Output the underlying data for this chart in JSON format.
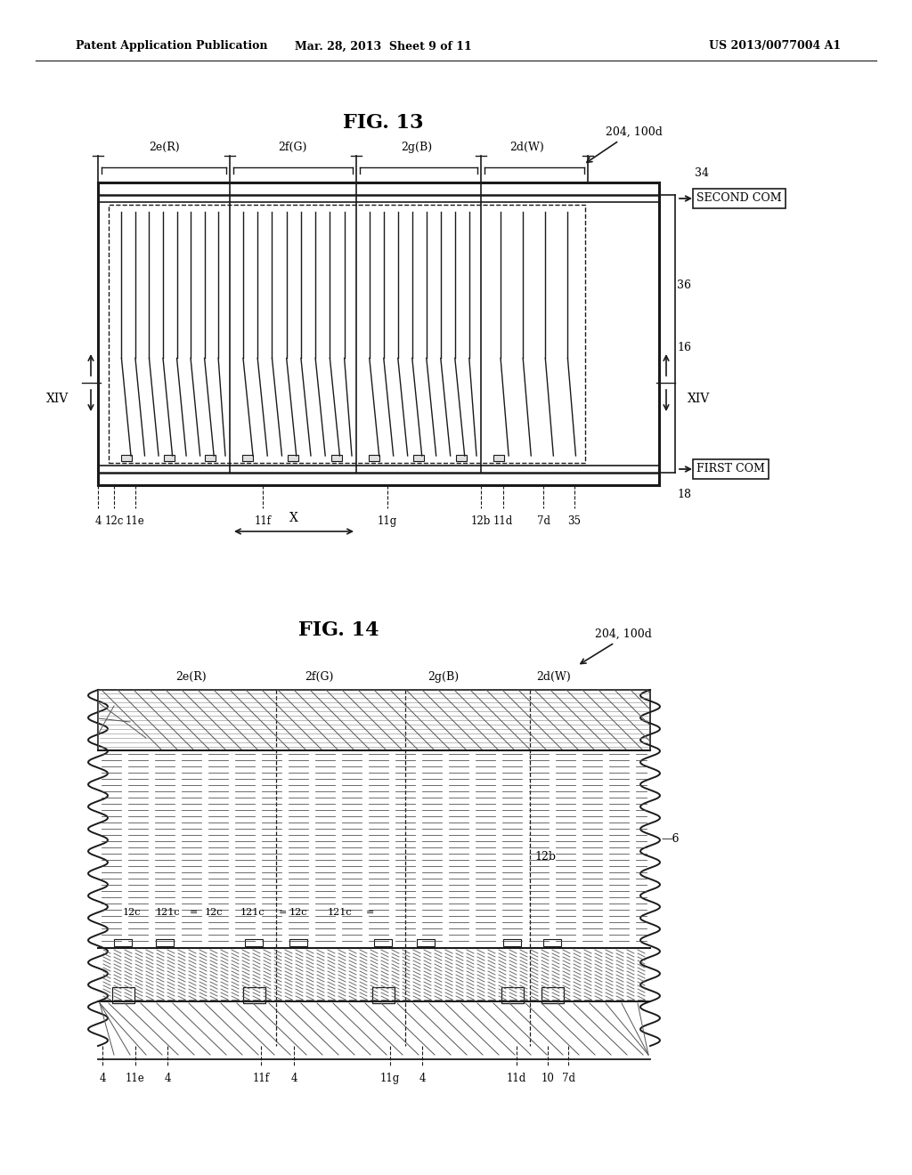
{
  "page_header_left": "Patent Application Publication",
  "page_header_mid": "Mar. 28, 2013  Sheet 9 of 11",
  "page_header_right": "US 2013/0077004 A1",
  "fig13_title": "FIG. 13",
  "fig14_title": "FIG. 14",
  "label_204_100d": "204, 100d",
  "label_second_com": "SECOND COM",
  "label_first_com": "FIRST COM",
  "label_34": "34",
  "label_36": "36",
  "label_16": "16",
  "label_18": "18",
  "label_35": "35",
  "label_6": "6",
  "label_10": "10",
  "label_XIV": "XIV",
  "label_X": "X",
  "bg_color": "#ffffff",
  "line_color": "#1a1a1a"
}
